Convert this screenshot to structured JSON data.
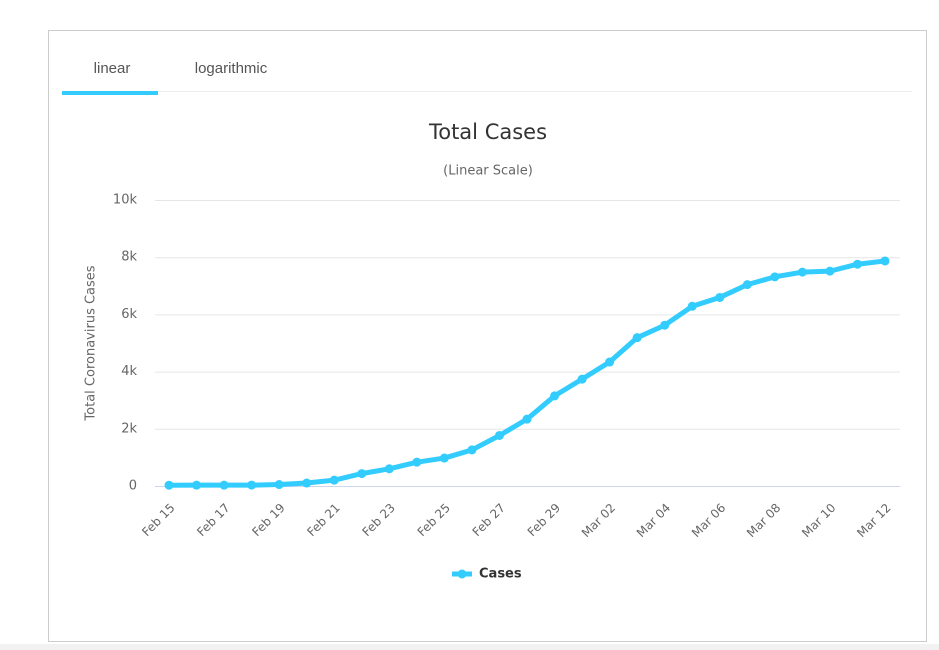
{
  "tabs": [
    "linear",
    "logarithmic"
  ],
  "chart_data": {
    "type": "line",
    "title": "Total Cases",
    "subtitle": "(Linear Scale)",
    "y_label": "Total Coronavirus Cases",
    "categories": [
      "Feb 15",
      null,
      "Feb 17",
      null,
      "Feb 19",
      null,
      "Feb 21",
      null,
      "Feb 23",
      null,
      "Feb 25",
      null,
      "Feb 27",
      null,
      "Feb 29",
      null,
      "Mar 02",
      null,
      "Mar 04",
      null,
      "Mar 06",
      null,
      "Mar 08",
      null,
      "Mar 10",
      null,
      "Mar 12"
    ],
    "series": [
      {
        "name": "Cases",
        "color": "#33ccff",
        "values": [
          28,
          29,
          30,
          31,
          51,
          104,
          204,
          433,
          602,
          833,
          977,
          1261,
          1766,
          2337,
          3150,
          3736,
          4335,
          5186,
          5621,
          6284,
          6593,
          7041,
          7313,
          7478,
          7513,
          7755,
          7869
        ]
      }
    ],
    "ylim": [
      0,
      10000
    ],
    "yticks": [
      0,
      {
        "value": 2000,
        "label": "2k"
      },
      {
        "value": 4000,
        "label": "4k"
      },
      {
        "value": 6000,
        "label": "6k"
      },
      {
        "value": 8000,
        "label": "8k"
      },
      {
        "value": 10000,
        "label": "10k"
      }
    ],
    "grid": true,
    "legend": "bottom"
  }
}
